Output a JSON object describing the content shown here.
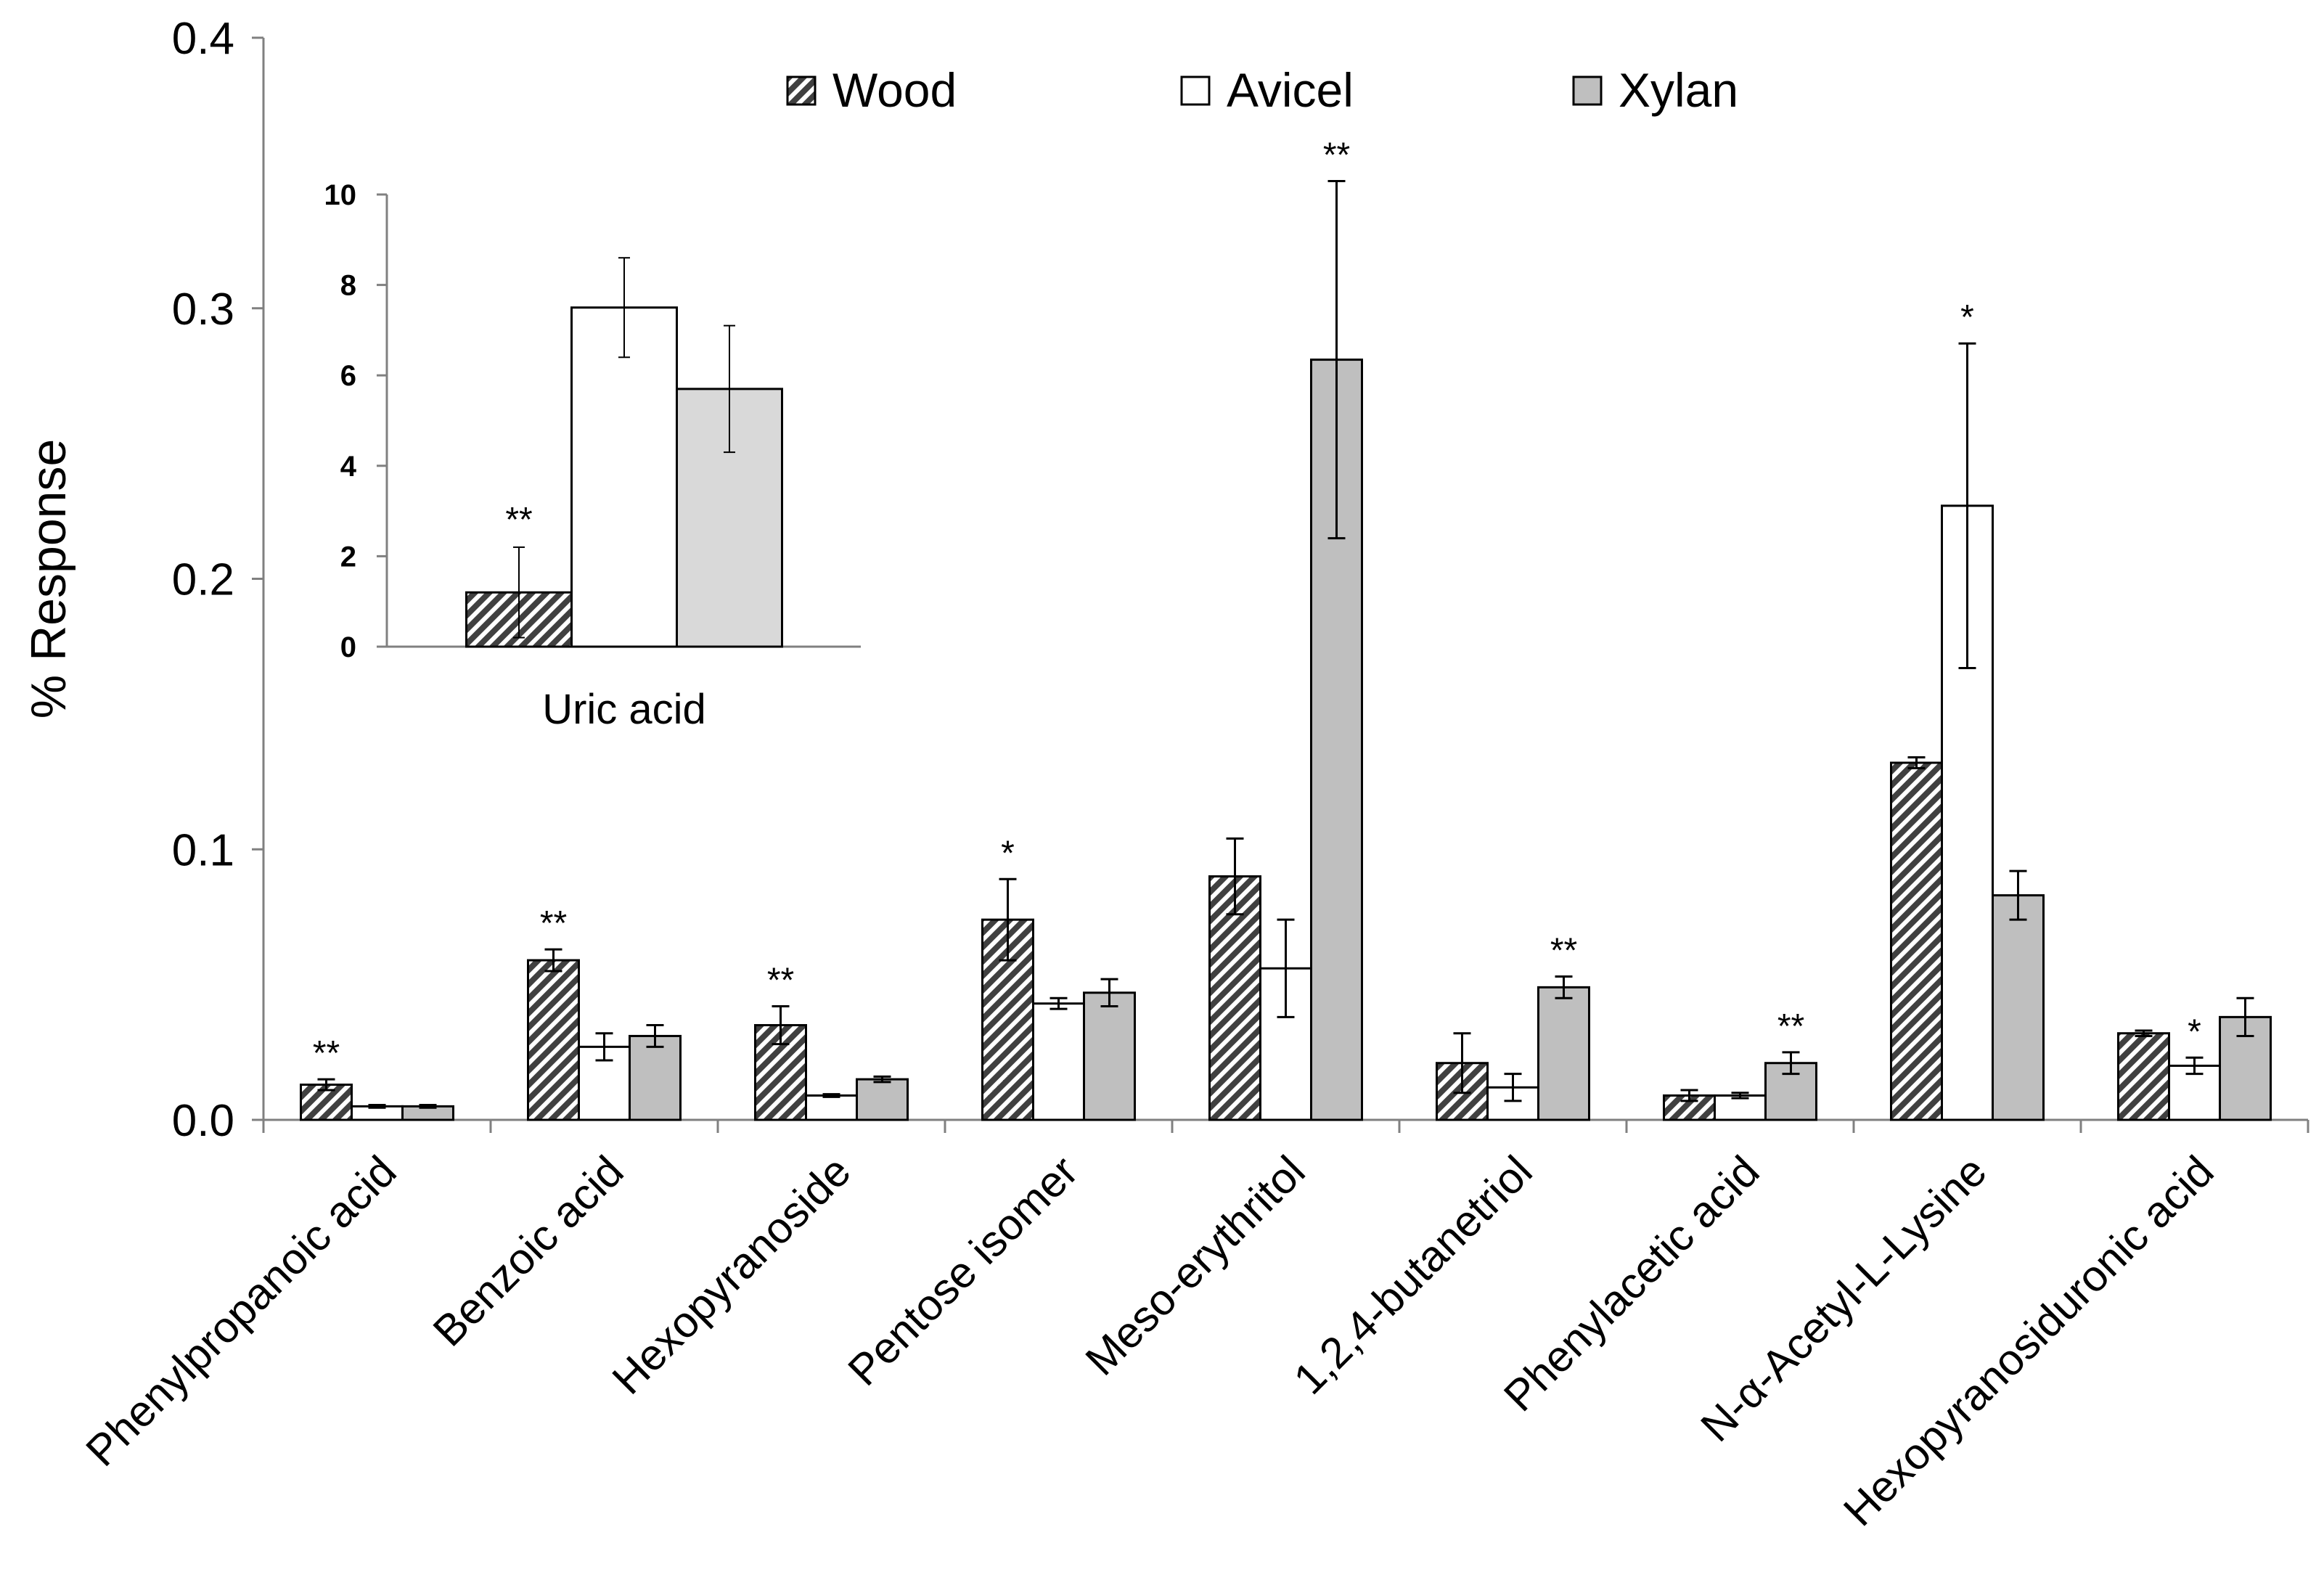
{
  "colors": {
    "wood": "#404040",
    "avicel": "#ffffff",
    "xylan": "#bfbfbf",
    "xylan_inset": "#d9d9d9",
    "axis": "#808080",
    "stroke": "#000000"
  },
  "chart_data": [
    {
      "type": "bar",
      "title": "",
      "xlabel": "",
      "ylabel": "% Response",
      "ylim": [
        0,
        0.4
      ],
      "yticks": [
        "0.0",
        "0.1",
        "0.2",
        "0.3",
        "0.4"
      ],
      "legend": {
        "position": "top-center",
        "entries": [
          "Wood",
          "Avicel",
          "Xylan"
        ]
      },
      "categories": [
        "Phenylpropanoic acid",
        "Benzoic acid",
        "Hexopyranoside",
        "Pentose isomer",
        "Meso-erythritol",
        "1,2,4-butanetriol",
        "Phenylacetic acid",
        "N-α-Acetyl-L-Lysine",
        "Hexopyranosiduronic acid"
      ],
      "series": [
        {
          "name": "Wood",
          "pattern": "hatched",
          "values": [
            0.013,
            0.059,
            0.035,
            0.074,
            0.09,
            0.021,
            0.009,
            0.132,
            0.032
          ],
          "errors": [
            0.002,
            0.004,
            0.007,
            0.015,
            0.014,
            0.011,
            0.002,
            0.002,
            0.001
          ]
        },
        {
          "name": "Avicel",
          "pattern": "white",
          "values": [
            0.005,
            0.027,
            0.009,
            0.043,
            0.056,
            0.012,
            0.009,
            0.227,
            0.02
          ],
          "errors": [
            0.0005,
            0.005,
            0.0005,
            0.002,
            0.018,
            0.005,
            0.001,
            0.06,
            0.003
          ]
        },
        {
          "name": "Xylan",
          "pattern": "gray",
          "values": [
            0.005,
            0.031,
            0.015,
            0.047,
            0.281,
            0.049,
            0.021,
            0.083,
            0.038
          ],
          "errors": [
            0.0005,
            0.004,
            0.001,
            0.005,
            0.066,
            0.004,
            0.004,
            0.009,
            0.007
          ]
        }
      ],
      "annotations": [
        {
          "category": "Phenylpropanoic acid",
          "series": "Wood",
          "text": "**"
        },
        {
          "category": "Benzoic acid",
          "series": "Wood",
          "text": "**"
        },
        {
          "category": "Hexopyranoside",
          "series": "Wood",
          "text": "**"
        },
        {
          "category": "Pentose isomer",
          "series": "Wood",
          "text": "*"
        },
        {
          "category": "Meso-erythritol",
          "series": "Xylan",
          "text": "**"
        },
        {
          "category": "1,2,4-butanetriol",
          "series": "Xylan",
          "text": "**"
        },
        {
          "category": "Phenylacetic acid",
          "series": "Xylan",
          "text": "**"
        },
        {
          "category": "N-α-Acetyl-L-Lysine",
          "series": "Avicel",
          "text": "*"
        },
        {
          "category": "Hexopyranosiduronic acid",
          "series": "Avicel",
          "text": "*"
        }
      ]
    },
    {
      "type": "bar",
      "title": "",
      "inset": true,
      "ylim": [
        0,
        10
      ],
      "yticks": [
        "0",
        "2",
        "4",
        "6",
        "8",
        "10"
      ],
      "categories": [
        "Uric acid"
      ],
      "series": [
        {
          "name": "Wood",
          "pattern": "hatched",
          "values": [
            1.2
          ],
          "errors": [
            1.0
          ]
        },
        {
          "name": "Avicel",
          "pattern": "white",
          "values": [
            7.5
          ],
          "errors": [
            1.1
          ]
        },
        {
          "name": "Xylan",
          "pattern": "light-gray",
          "values": [
            5.7
          ],
          "errors": [
            1.4
          ]
        }
      ],
      "annotations": [
        {
          "category": "Uric acid",
          "series": "Wood",
          "text": "**"
        }
      ]
    }
  ]
}
